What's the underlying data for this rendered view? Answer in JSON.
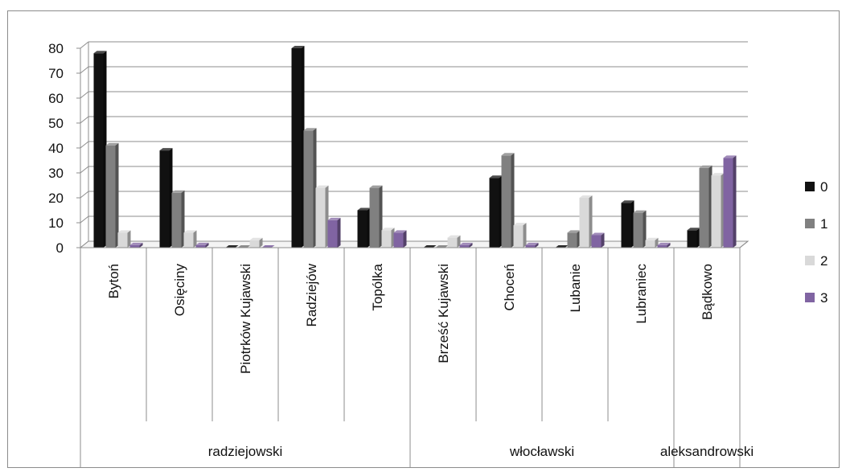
{
  "chart_data": {
    "type": "bar",
    "style": "3d-clustered-column",
    "ylim": [
      0,
      80
    ],
    "yticks": [
      "0",
      "10",
      "20",
      "30",
      "40",
      "50",
      "60",
      "70",
      "80"
    ],
    "grid": true,
    "legend_position": "right",
    "categories": [
      "Bytoń",
      "Osięciny",
      "Piotrków Kujawski",
      "Radziejów",
      "Topólka",
      "Brześć Kujawski",
      "Choceń",
      "Lubanie",
      "Lubraniec",
      "Bądkowo"
    ],
    "groups": [
      {
        "label": "radziejowski",
        "count": 5
      },
      {
        "label": "włocławski",
        "count": 4
      },
      {
        "label": "aleksandrowski",
        "count": 1
      }
    ],
    "series": [
      {
        "name": "0",
        "color": "#111111",
        "values": [
          78,
          39,
          0,
          80,
          15,
          0,
          28,
          0,
          18,
          7
        ]
      },
      {
        "name": "1",
        "color": "#808080",
        "values": [
          41,
          22,
          0,
          47,
          24,
          0,
          37,
          6,
          14,
          32
        ]
      },
      {
        "name": "2",
        "color": "#d9d9d9",
        "values": [
          6,
          6,
          3,
          24,
          7,
          4,
          9,
          20,
          3,
          29
        ]
      },
      {
        "name": "3",
        "color": "#8064a2",
        "values": [
          1,
          1,
          0,
          11,
          6,
          1,
          1,
          5,
          1,
          36
        ]
      }
    ]
  }
}
